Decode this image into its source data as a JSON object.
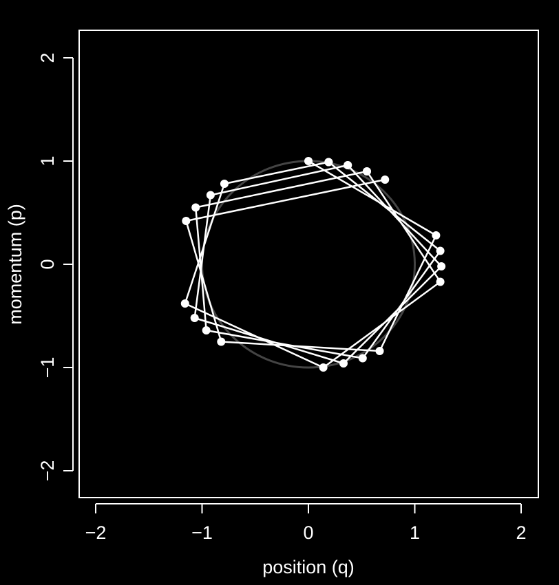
{
  "chart_data": {
    "type": "scatter",
    "title": "",
    "xlabel": "position (q)",
    "ylabel": "momentum (p)",
    "xlim": [
      -2.2,
      2.2
    ],
    "ylim": [
      -2.25,
      2.25
    ],
    "xticks": [
      -2,
      -1,
      0,
      1,
      2
    ],
    "yticks": [
      -2,
      -1,
      0,
      1,
      2
    ],
    "xtick_labels": [
      "−2",
      "−1",
      "0",
      "1",
      "2"
    ],
    "ytick_labels": [
      "−2",
      "−1",
      "0",
      "1",
      "2"
    ],
    "background": "#000000",
    "foreground": "#ffffff",
    "circle": {
      "center": [
        0,
        0
      ],
      "radius": 1,
      "color": "#444444"
    },
    "series": [
      {
        "points": [
          [
            0.0,
            1.0
          ],
          [
            1.2,
            0.28
          ],
          [
            0.67,
            -0.84
          ],
          [
            -0.82,
            -0.75
          ],
          [
            -1.15,
            0.42
          ],
          [
            0.72,
            0.82
          ]
        ]
      },
      {
        "points": [
          [
            0.19,
            0.99
          ],
          [
            1.24,
            0.13
          ],
          [
            0.51,
            -0.91
          ],
          [
            -0.96,
            -0.64
          ],
          [
            -1.06,
            0.55
          ],
          [
            0.55,
            0.9
          ]
        ]
      },
      {
        "points": [
          [
            0.37,
            0.96
          ],
          [
            1.25,
            -0.02
          ],
          [
            0.33,
            -0.96
          ],
          [
            -1.07,
            -0.52
          ],
          [
            -0.92,
            0.67
          ],
          [
            0.37,
            0.96
          ]
        ]
      },
      {
        "points": [
          [
            0.55,
            0.9
          ],
          [
            1.24,
            -0.17
          ],
          [
            0.14,
            -1.0
          ],
          [
            -1.16,
            -0.38
          ],
          [
            -0.79,
            0.78
          ],
          [
            0.19,
            0.99
          ]
        ]
      }
    ],
    "grid": false
  }
}
